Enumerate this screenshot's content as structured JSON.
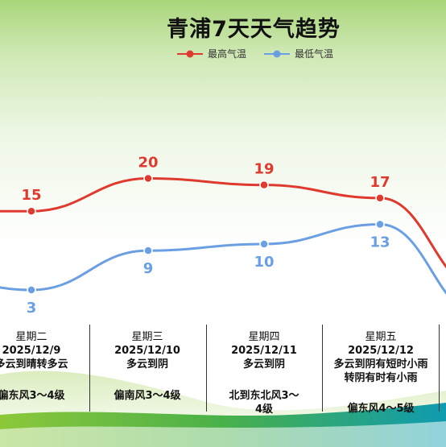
{
  "title": "青浦7天天气趋势",
  "colors": {
    "high": "#e03a2f",
    "low": "#6a9fe3"
  },
  "chart_data": {
    "type": "line",
    "title": "青浦7天天气趋势",
    "categories": [
      "星期二",
      "星期三",
      "星期四",
      "星期五"
    ],
    "series": [
      {
        "name": "最高气温",
        "values": [
          15,
          20,
          19,
          17
        ]
      },
      {
        "name": "最低气温",
        "values": [
          3,
          9,
          10,
          13
        ]
      }
    ],
    "legend": "top-center"
  },
  "days": [
    {
      "weekday": "星期二",
      "date": "2025/12/9",
      "weather": "多云到晴转多云",
      "wind": "偏东风3～4级"
    },
    {
      "weekday": "星期三",
      "date": "2025/12/10",
      "weather": "多云到阴",
      "wind": "偏南风3～4级"
    },
    {
      "weekday": "星期四",
      "date": "2025/12/11",
      "weather": "多云到阴",
      "wind": "北到东北风3～4级"
    },
    {
      "weekday": "星期五",
      "date": "2025/12/12",
      "weather": "多云到阴有短时小雨转阴有时有小雨",
      "wind": "偏东风4～5级"
    }
  ]
}
